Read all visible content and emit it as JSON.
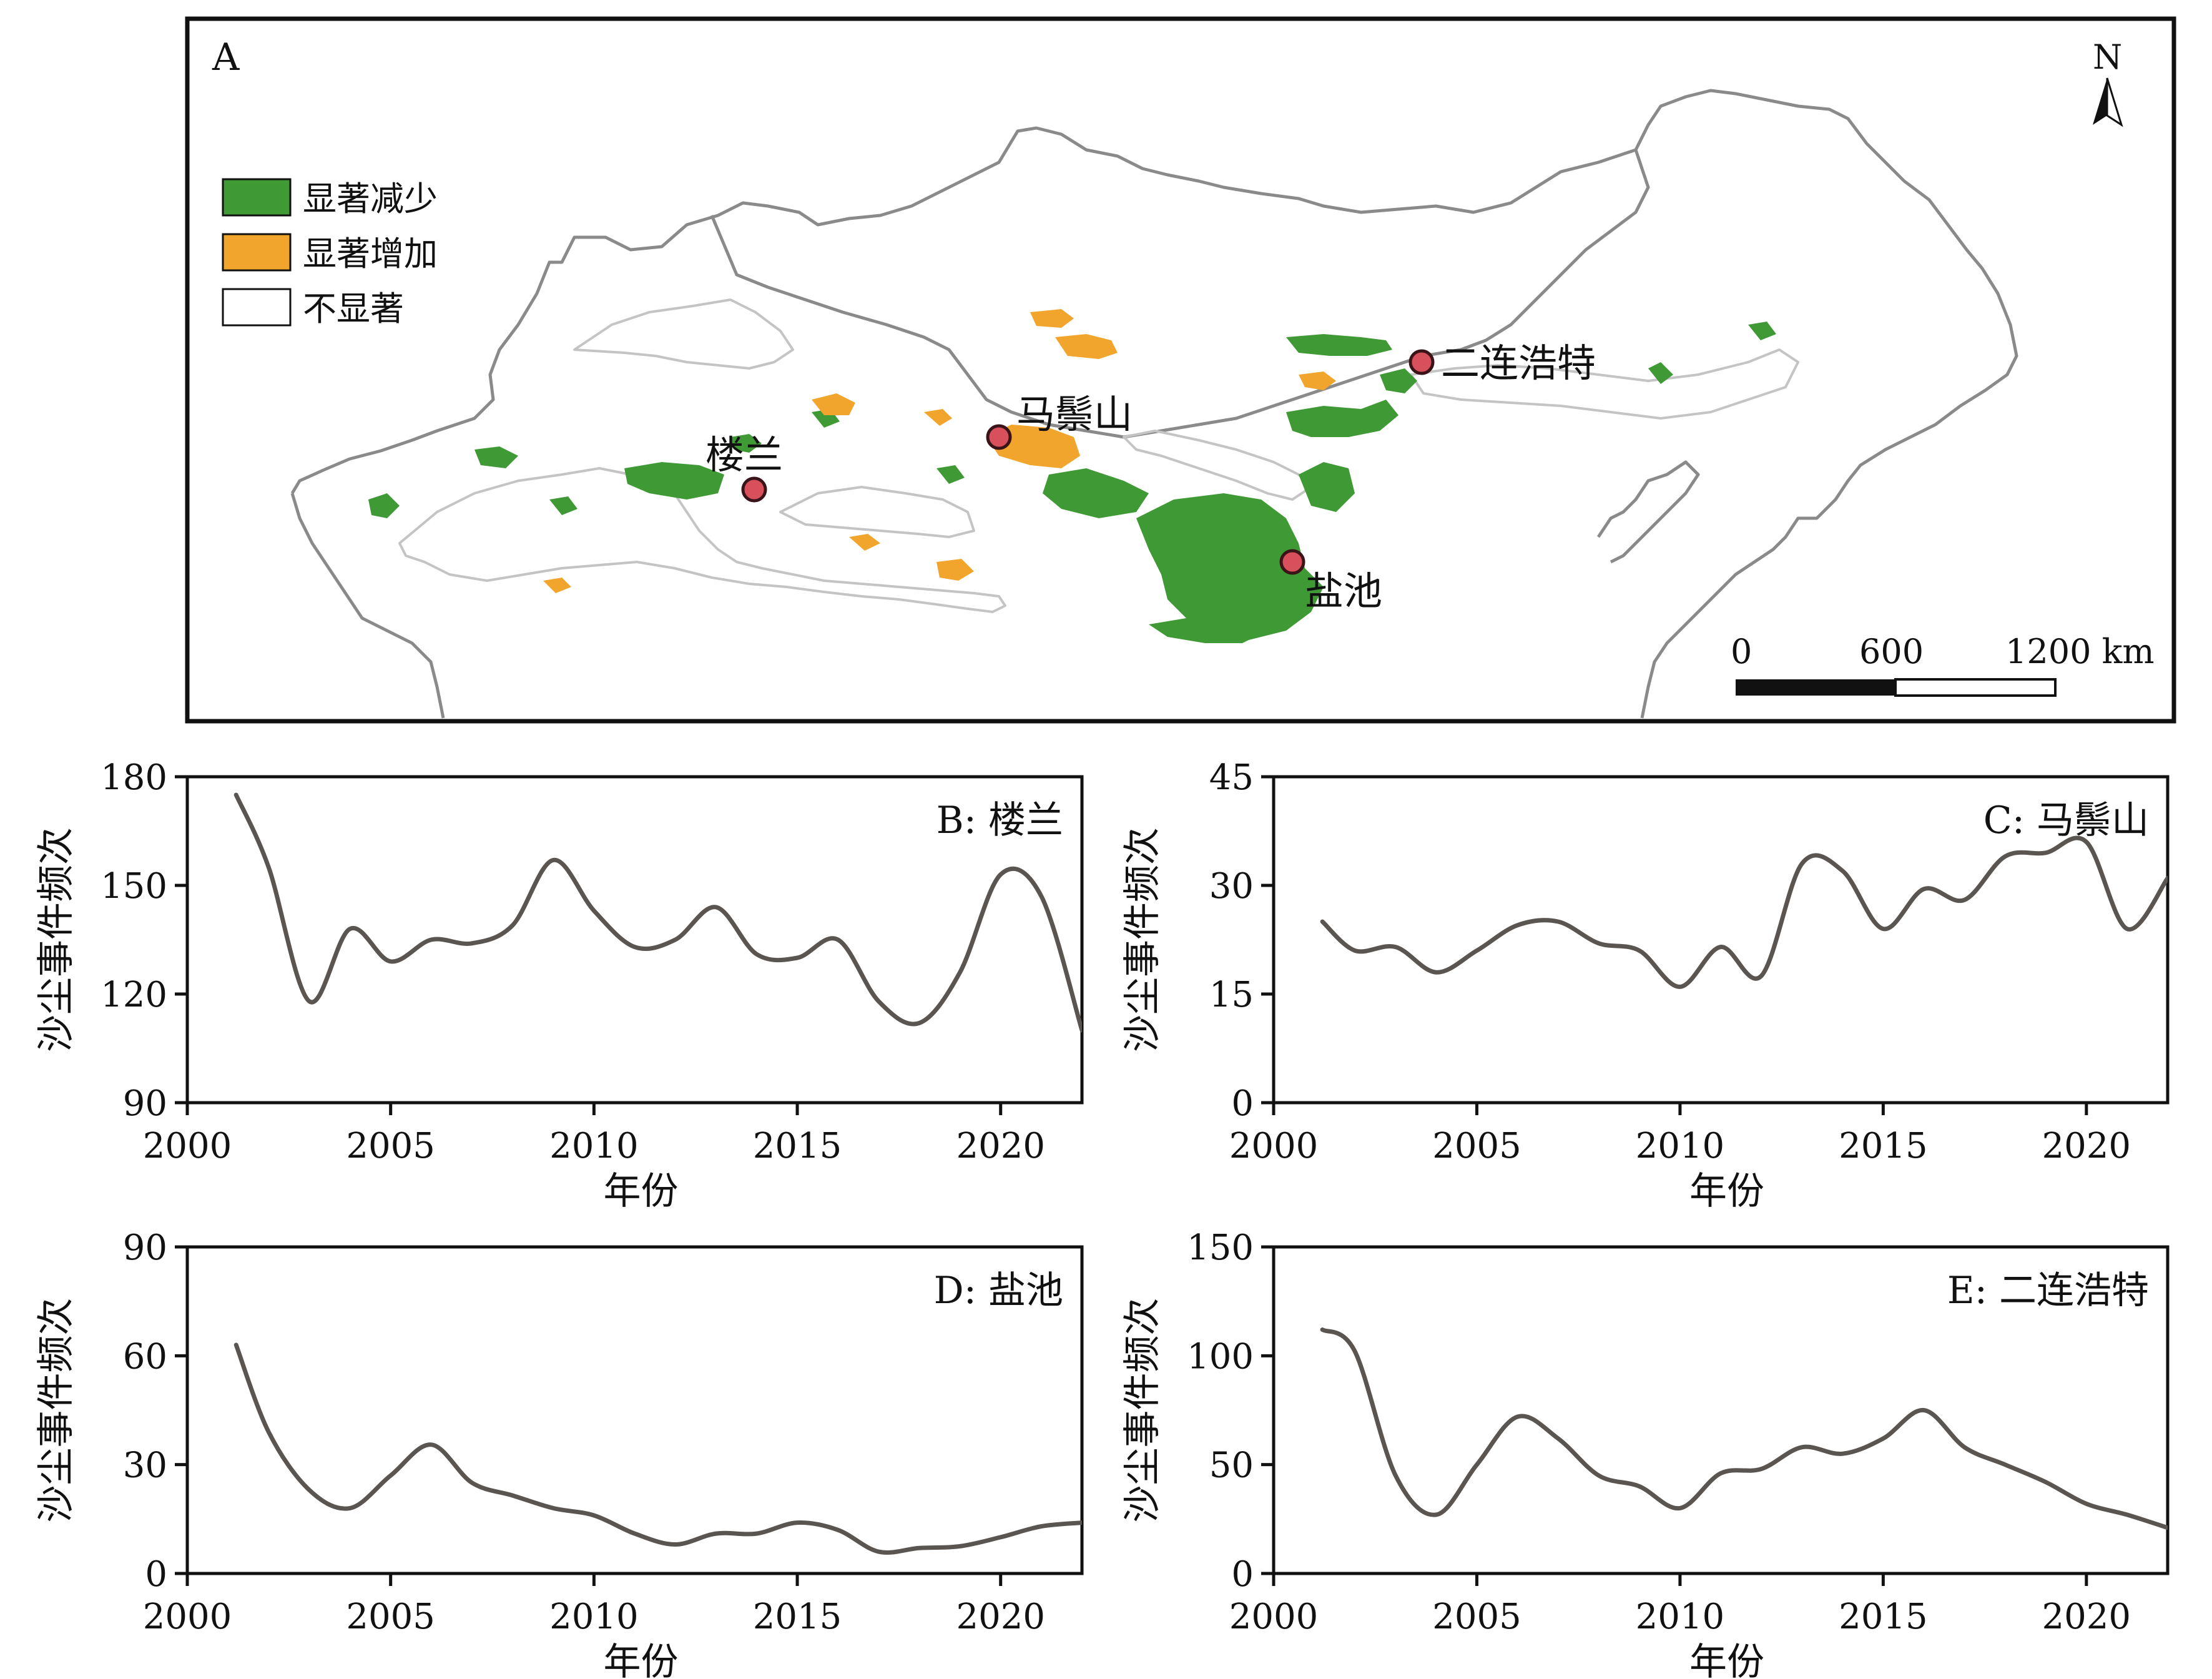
{
  "map": {
    "panel_label": "A",
    "north": "N",
    "legend": [
      {
        "label": "显著减少",
        "color": "#3f9a35"
      },
      {
        "label": "显著增加",
        "color": "#f2a52c"
      },
      {
        "label": "不显著",
        "color": "#ffffff"
      }
    ],
    "sites": [
      {
        "name": "楼兰"
      },
      {
        "name": "马鬃山"
      },
      {
        "name": "二连浩特"
      },
      {
        "name": "盐池"
      }
    ],
    "scale_bar": {
      "labels": [
        "0",
        "600",
        "1200 km"
      ]
    }
  },
  "chart_data": [
    {
      "type": "line",
      "title": "B: 楼兰",
      "xlabel": "年份",
      "ylabel": "沙尘事件频次",
      "xlim": [
        2000,
        2022
      ],
      "ylim": [
        90,
        180
      ],
      "xticks": [
        2000,
        2005,
        2010,
        2015,
        2020
      ],
      "yticks": [
        90,
        120,
        150,
        180
      ],
      "x": [
        2001.2,
        2002,
        2003,
        2004,
        2005,
        2006,
        2007,
        2008,
        2009,
        2010,
        2011,
        2012,
        2013,
        2014,
        2015,
        2016,
        2017,
        2018,
        2019,
        2020,
        2021,
        2022
      ],
      "y": [
        175,
        155,
        118,
        138,
        129,
        135,
        134,
        139,
        157,
        143,
        133,
        135,
        144,
        131,
        130,
        135,
        118,
        112,
        126,
        153,
        147,
        110
      ]
    },
    {
      "type": "line",
      "title": "C: 马鬃山",
      "xlabel": "年份",
      "ylabel": "沙尘事件频次",
      "xlim": [
        2000,
        2022
      ],
      "ylim": [
        0,
        45
      ],
      "xticks": [
        2000,
        2005,
        2010,
        2015,
        2020
      ],
      "yticks": [
        0,
        15,
        30,
        45
      ],
      "x": [
        2001.2,
        2002,
        2003,
        2004,
        2005,
        2006,
        2007,
        2008,
        2009,
        2010,
        2011,
        2012,
        2013,
        2014,
        2015,
        2016,
        2017,
        2018,
        2019,
        2020,
        2021,
        2022
      ],
      "y": [
        25,
        21,
        21.5,
        18,
        21,
        24.5,
        25,
        22,
        21,
        16,
        21.5,
        17.5,
        33,
        32,
        24,
        29.5,
        28,
        34,
        34.5,
        36,
        24,
        31
      ]
    },
    {
      "type": "line",
      "title": "D: 盐池",
      "xlabel": "年份",
      "ylabel": "沙尘事件频次",
      "xlim": [
        2000,
        2022
      ],
      "ylim": [
        0,
        90
      ],
      "xticks": [
        2000,
        2005,
        2010,
        2015,
        2020
      ],
      "yticks": [
        0,
        30,
        60,
        90
      ],
      "x": [
        2001.2,
        2002,
        2003,
        2004,
        2005,
        2006,
        2007,
        2008,
        2009,
        2010,
        2011,
        2012,
        2013,
        2014,
        2015,
        2016,
        2017,
        2018,
        2019,
        2020,
        2021,
        2022
      ],
      "y": [
        63,
        39,
        23,
        18,
        27,
        35.5,
        25,
        21.5,
        18,
        16,
        11,
        8,
        11,
        11,
        14,
        12,
        6,
        7,
        7.5,
        10,
        13,
        14
      ]
    },
    {
      "type": "line",
      "title": "E: 二连浩特",
      "xlabel": "年份",
      "ylabel": "沙尘事件频次",
      "xlim": [
        2000,
        2022
      ],
      "ylim": [
        0,
        150
      ],
      "xticks": [
        2000,
        2005,
        2010,
        2015,
        2020
      ],
      "yticks": [
        0,
        50,
        100,
        150
      ],
      "x": [
        2001.2,
        2002,
        2003,
        2004,
        2005,
        2006,
        2007,
        2008,
        2009,
        2010,
        2011,
        2012,
        2013,
        2014,
        2015,
        2016,
        2017,
        2018,
        2019,
        2020,
        2021,
        2022
      ],
      "y": [
        112,
        102,
        45,
        27,
        50,
        72,
        62,
        45,
        40,
        30,
        46,
        48,
        58,
        55,
        62,
        75,
        58,
        50,
        42,
        32,
        27,
        21
      ]
    }
  ]
}
